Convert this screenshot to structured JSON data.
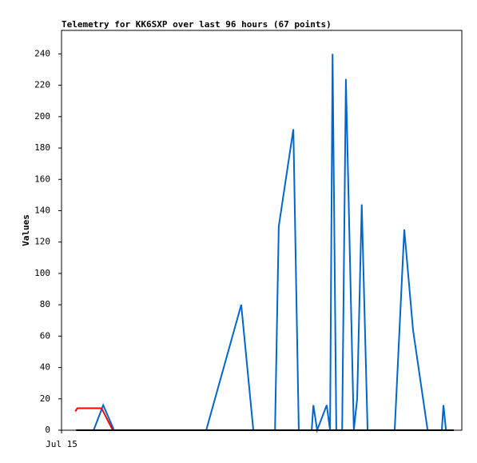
{
  "chart_data": {
    "type": "line",
    "title": "Telemetry for KK6SXP over last 96 hours (67 points)",
    "y_label": "Values",
    "xlim": [
      0,
      96
    ],
    "xticks": [
      {
        "value": 0,
        "label": "Jul 15"
      }
    ],
    "ylim": [
      0,
      255
    ],
    "yticks": [
      0,
      20,
      40,
      60,
      80,
      100,
      120,
      140,
      160,
      180,
      200,
      220,
      240
    ],
    "series": [
      {
        "color": "#0066cc",
        "x": [
          7.7,
          10.0,
          12.6,
          34.7,
          43.1,
          46.0,
          51.2,
          52.1,
          55.6,
          56.9,
          60.0,
          60.4,
          61.3,
          63.6,
          64.4,
          65.0,
          65.9,
          67.3,
          68.2,
          70.1,
          70.9,
          72.0,
          73.4,
          79.9,
          82.2,
          84.3,
          87.8,
          91.2,
          91.6,
          92.2
        ],
        "values": [
          0,
          16,
          0,
          0,
          80,
          0,
          0,
          130,
          192,
          0,
          0,
          16,
          0,
          16,
          0,
          240,
          0,
          0,
          224,
          0,
          20,
          144,
          0,
          0,
          128,
          64,
          0,
          0,
          16,
          0
        ]
      },
      {
        "color": "#ff0000",
        "x": [
          3.3,
          3.8,
          9.6,
          12.3
        ],
        "values": [
          12,
          14,
          14,
          0
        ]
      },
      {
        "color": "#000000",
        "x": [
          3.5,
          94.1
        ],
        "values": [
          0,
          0
        ]
      }
    ]
  }
}
